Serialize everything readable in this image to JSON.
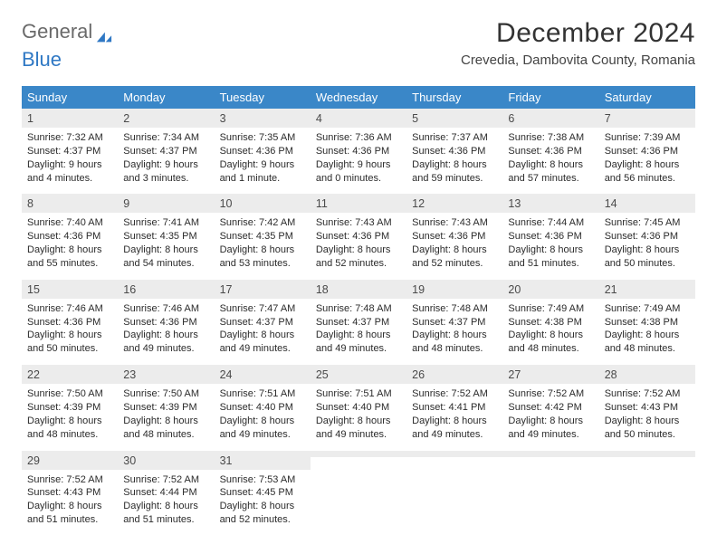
{
  "brand": {
    "part1": "General",
    "part2": "Blue"
  },
  "title": "December 2024",
  "location": "Crevedia, Dambovita County, Romania",
  "week_header_bg": "#3a87c8",
  "week_header_color": "#ffffff",
  "daynum_bg": "#ececec",
  "rule_color": "#2f78c4",
  "body_text_color": "#2b2b2b",
  "page_bg": "#ffffff",
  "font_family": "Arial",
  "weekdays": [
    "Sunday",
    "Monday",
    "Tuesday",
    "Wednesday",
    "Thursday",
    "Friday",
    "Saturday"
  ],
  "weeks": [
    [
      {
        "n": "1",
        "sr": "Sunrise: 7:32 AM",
        "ss": "Sunset: 4:37 PM",
        "d1": "Daylight: 9 hours",
        "d2": "and 4 minutes."
      },
      {
        "n": "2",
        "sr": "Sunrise: 7:34 AM",
        "ss": "Sunset: 4:37 PM",
        "d1": "Daylight: 9 hours",
        "d2": "and 3 minutes."
      },
      {
        "n": "3",
        "sr": "Sunrise: 7:35 AM",
        "ss": "Sunset: 4:36 PM",
        "d1": "Daylight: 9 hours",
        "d2": "and 1 minute."
      },
      {
        "n": "4",
        "sr": "Sunrise: 7:36 AM",
        "ss": "Sunset: 4:36 PM",
        "d1": "Daylight: 9 hours",
        "d2": "and 0 minutes."
      },
      {
        "n": "5",
        "sr": "Sunrise: 7:37 AM",
        "ss": "Sunset: 4:36 PM",
        "d1": "Daylight: 8 hours",
        "d2": "and 59 minutes."
      },
      {
        "n": "6",
        "sr": "Sunrise: 7:38 AM",
        "ss": "Sunset: 4:36 PM",
        "d1": "Daylight: 8 hours",
        "d2": "and 57 minutes."
      },
      {
        "n": "7",
        "sr": "Sunrise: 7:39 AM",
        "ss": "Sunset: 4:36 PM",
        "d1": "Daylight: 8 hours",
        "d2": "and 56 minutes."
      }
    ],
    [
      {
        "n": "8",
        "sr": "Sunrise: 7:40 AM",
        "ss": "Sunset: 4:36 PM",
        "d1": "Daylight: 8 hours",
        "d2": "and 55 minutes."
      },
      {
        "n": "9",
        "sr": "Sunrise: 7:41 AM",
        "ss": "Sunset: 4:35 PM",
        "d1": "Daylight: 8 hours",
        "d2": "and 54 minutes."
      },
      {
        "n": "10",
        "sr": "Sunrise: 7:42 AM",
        "ss": "Sunset: 4:35 PM",
        "d1": "Daylight: 8 hours",
        "d2": "and 53 minutes."
      },
      {
        "n": "11",
        "sr": "Sunrise: 7:43 AM",
        "ss": "Sunset: 4:36 PM",
        "d1": "Daylight: 8 hours",
        "d2": "and 52 minutes."
      },
      {
        "n": "12",
        "sr": "Sunrise: 7:43 AM",
        "ss": "Sunset: 4:36 PM",
        "d1": "Daylight: 8 hours",
        "d2": "and 52 minutes."
      },
      {
        "n": "13",
        "sr": "Sunrise: 7:44 AM",
        "ss": "Sunset: 4:36 PM",
        "d1": "Daylight: 8 hours",
        "d2": "and 51 minutes."
      },
      {
        "n": "14",
        "sr": "Sunrise: 7:45 AM",
        "ss": "Sunset: 4:36 PM",
        "d1": "Daylight: 8 hours",
        "d2": "and 50 minutes."
      }
    ],
    [
      {
        "n": "15",
        "sr": "Sunrise: 7:46 AM",
        "ss": "Sunset: 4:36 PM",
        "d1": "Daylight: 8 hours",
        "d2": "and 50 minutes."
      },
      {
        "n": "16",
        "sr": "Sunrise: 7:46 AM",
        "ss": "Sunset: 4:36 PM",
        "d1": "Daylight: 8 hours",
        "d2": "and 49 minutes."
      },
      {
        "n": "17",
        "sr": "Sunrise: 7:47 AM",
        "ss": "Sunset: 4:37 PM",
        "d1": "Daylight: 8 hours",
        "d2": "and 49 minutes."
      },
      {
        "n": "18",
        "sr": "Sunrise: 7:48 AM",
        "ss": "Sunset: 4:37 PM",
        "d1": "Daylight: 8 hours",
        "d2": "and 49 minutes."
      },
      {
        "n": "19",
        "sr": "Sunrise: 7:48 AM",
        "ss": "Sunset: 4:37 PM",
        "d1": "Daylight: 8 hours",
        "d2": "and 48 minutes."
      },
      {
        "n": "20",
        "sr": "Sunrise: 7:49 AM",
        "ss": "Sunset: 4:38 PM",
        "d1": "Daylight: 8 hours",
        "d2": "and 48 minutes."
      },
      {
        "n": "21",
        "sr": "Sunrise: 7:49 AM",
        "ss": "Sunset: 4:38 PM",
        "d1": "Daylight: 8 hours",
        "d2": "and 48 minutes."
      }
    ],
    [
      {
        "n": "22",
        "sr": "Sunrise: 7:50 AM",
        "ss": "Sunset: 4:39 PM",
        "d1": "Daylight: 8 hours",
        "d2": "and 48 minutes."
      },
      {
        "n": "23",
        "sr": "Sunrise: 7:50 AM",
        "ss": "Sunset: 4:39 PM",
        "d1": "Daylight: 8 hours",
        "d2": "and 48 minutes."
      },
      {
        "n": "24",
        "sr": "Sunrise: 7:51 AM",
        "ss": "Sunset: 4:40 PM",
        "d1": "Daylight: 8 hours",
        "d2": "and 49 minutes."
      },
      {
        "n": "25",
        "sr": "Sunrise: 7:51 AM",
        "ss": "Sunset: 4:40 PM",
        "d1": "Daylight: 8 hours",
        "d2": "and 49 minutes."
      },
      {
        "n": "26",
        "sr": "Sunrise: 7:52 AM",
        "ss": "Sunset: 4:41 PM",
        "d1": "Daylight: 8 hours",
        "d2": "and 49 minutes."
      },
      {
        "n": "27",
        "sr": "Sunrise: 7:52 AM",
        "ss": "Sunset: 4:42 PM",
        "d1": "Daylight: 8 hours",
        "d2": "and 49 minutes."
      },
      {
        "n": "28",
        "sr": "Sunrise: 7:52 AM",
        "ss": "Sunset: 4:43 PM",
        "d1": "Daylight: 8 hours",
        "d2": "and 50 minutes."
      }
    ],
    [
      {
        "n": "29",
        "sr": "Sunrise: 7:52 AM",
        "ss": "Sunset: 4:43 PM",
        "d1": "Daylight: 8 hours",
        "d2": "and 51 minutes."
      },
      {
        "n": "30",
        "sr": "Sunrise: 7:52 AM",
        "ss": "Sunset: 4:44 PM",
        "d1": "Daylight: 8 hours",
        "d2": "and 51 minutes."
      },
      {
        "n": "31",
        "sr": "Sunrise: 7:53 AM",
        "ss": "Sunset: 4:45 PM",
        "d1": "Daylight: 8 hours",
        "d2": "and 52 minutes."
      },
      null,
      null,
      null,
      null
    ]
  ]
}
